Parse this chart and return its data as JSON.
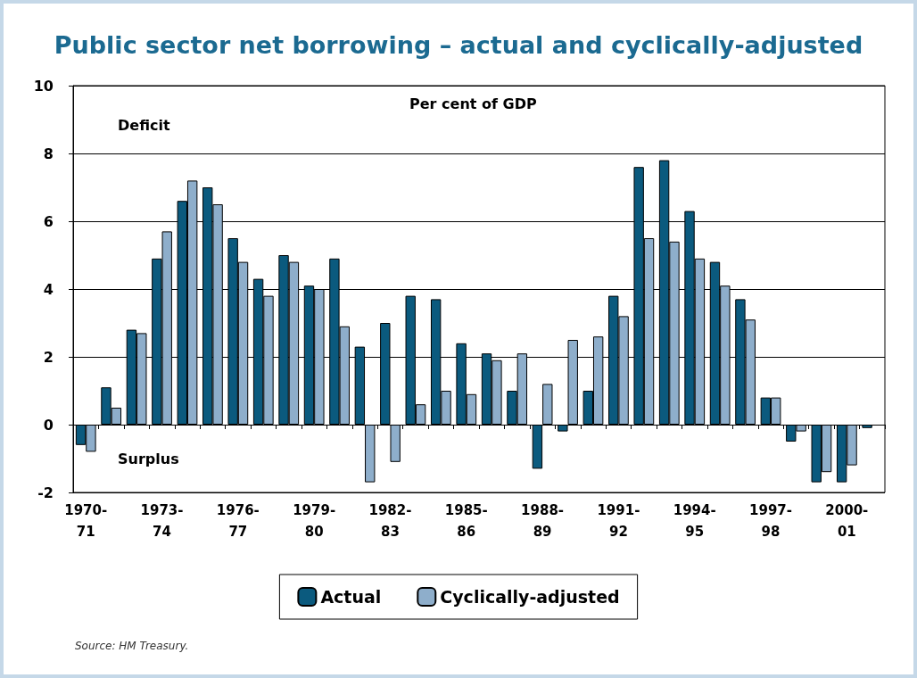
{
  "chart_data": {
    "type": "bar",
    "title": "Public sector net borrowing – actual and cyclically-adjusted",
    "categories": [
      "1970-71",
      null,
      null,
      "1973-74",
      null,
      null,
      "1976-77",
      null,
      null,
      "1979-80",
      null,
      null,
      "1982-83",
      null,
      null,
      "1985-86",
      null,
      null,
      "1988-89",
      null,
      null,
      "1991-92",
      null,
      null,
      "1994-95",
      null,
      null,
      "1997-98",
      null,
      null,
      "2000-01",
      null
    ],
    "series": [
      {
        "name": "Actual",
        "color": "#0b5a7e",
        "values": [
          -0.6,
          1.1,
          2.8,
          4.9,
          6.6,
          7.0,
          5.5,
          4.3,
          5.0,
          4.1,
          4.9,
          2.3,
          3.0,
          3.8,
          3.7,
          2.4,
          2.1,
          1.0,
          -1.3,
          -0.2,
          1.0,
          3.8,
          7.6,
          7.8,
          6.3,
          4.8,
          3.7,
          0.8,
          -0.5,
          -1.7,
          -1.7,
          -0.1
        ]
      },
      {
        "name": "Cyclically-adjusted",
        "color": "#8eaecb",
        "values": [
          -0.8,
          0.5,
          2.7,
          5.7,
          7.2,
          6.5,
          4.8,
          3.8,
          4.8,
          4.0,
          2.9,
          -1.7,
          -1.1,
          0.6,
          1.0,
          0.9,
          1.9,
          2.1,
          1.2,
          2.5,
          2.6,
          3.2,
          5.5,
          5.4,
          4.9,
          4.1,
          3.1,
          0.8,
          -0.2,
          -1.4,
          -1.2,
          null
        ]
      }
    ],
    "ylim": [
      -2,
      10
    ],
    "yticks": [
      -2,
      0,
      2,
      4,
      6,
      8,
      10
    ],
    "grid": "y",
    "legend": "bottom",
    "annotations": [
      "Per cent of GDP",
      "Deficit",
      "Surplus",
      "Source: HM Treasury."
    ]
  }
}
